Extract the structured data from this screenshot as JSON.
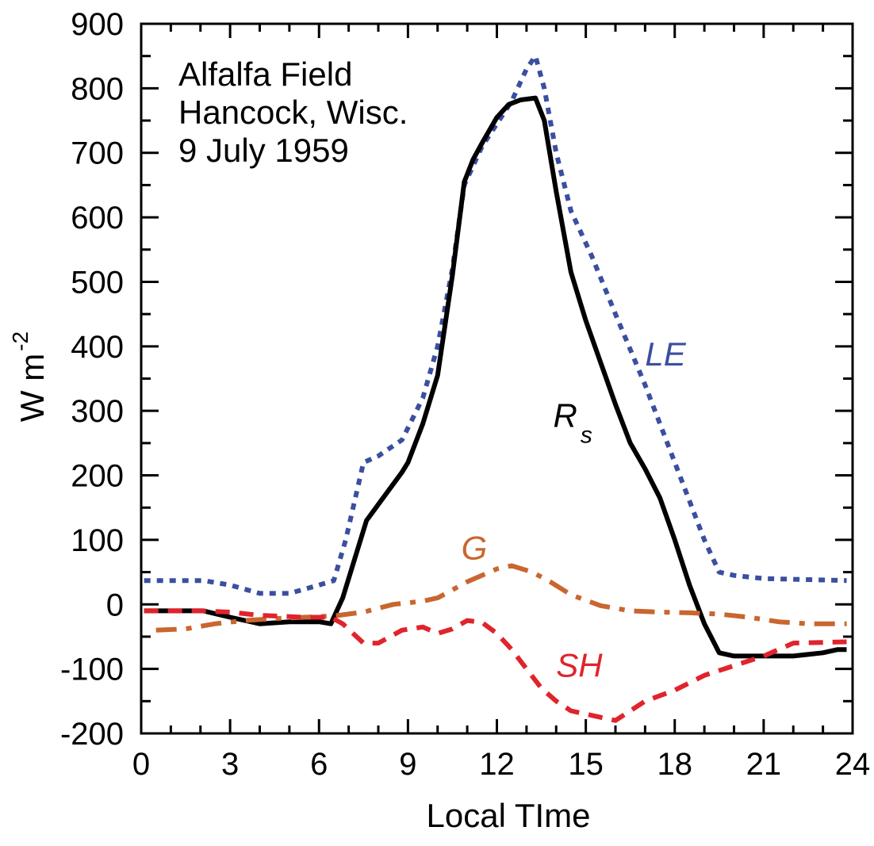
{
  "chart_data": {
    "type": "line",
    "title": "",
    "annotation": [
      "Alfalfa Field",
      "Hancock, Wisc.",
      "9 July 1959"
    ],
    "xlabel": "Local TIme",
    "ylabel": "W m",
    "ylabel_superscript": "-2",
    "xlim": [
      0,
      24
    ],
    "ylim": [
      -200,
      900
    ],
    "xticks": [
      0,
      3,
      6,
      9,
      12,
      15,
      18,
      21,
      24
    ],
    "yticks": [
      -200,
      -100,
      0,
      100,
      200,
      300,
      400,
      500,
      600,
      700,
      800,
      900
    ],
    "xtick_labels": [
      "0",
      "3",
      "6",
      "9",
      "12",
      "15",
      "18",
      "21",
      "24"
    ],
    "ytick_labels": [
      "-200",
      "-100",
      "0",
      "100",
      "200",
      "300",
      "400",
      "500",
      "600",
      "700",
      "800",
      "900"
    ],
    "grid": false,
    "series": [
      {
        "name": "LE",
        "color": "#3b4fa0",
        "style": "dotted",
        "label_pos": [
          17.0,
          370
        ],
        "points": [
          [
            0.1,
            37
          ],
          [
            2.1,
            37
          ],
          [
            3.0,
            30
          ],
          [
            4.0,
            17
          ],
          [
            5.0,
            17
          ],
          [
            6.0,
            30
          ],
          [
            6.5,
            37
          ],
          [
            6.9,
            100
          ],
          [
            7.5,
            220
          ],
          [
            8.0,
            230
          ],
          [
            8.8,
            255
          ],
          [
            9.5,
            320
          ],
          [
            10.0,
            400
          ],
          [
            10.5,
            520
          ],
          [
            10.9,
            650
          ],
          [
            11.5,
            710
          ],
          [
            12.0,
            745
          ],
          [
            12.5,
            780
          ],
          [
            13.0,
            830
          ],
          [
            13.3,
            850
          ],
          [
            13.6,
            800
          ],
          [
            14.0,
            700
          ],
          [
            14.5,
            610
          ],
          [
            15.2,
            540
          ],
          [
            16.0,
            450
          ],
          [
            17.0,
            340
          ],
          [
            18.0,
            220
          ],
          [
            19.0,
            100
          ],
          [
            19.5,
            50
          ],
          [
            20.0,
            45
          ],
          [
            21.0,
            40
          ],
          [
            23.8,
            37
          ]
        ]
      },
      {
        "name": "R",
        "name_subscript": "s",
        "color": "#000000",
        "style": "solid",
        "label_pos": [
          13.9,
          275
        ],
        "points": [
          [
            0.1,
            -10
          ],
          [
            2.1,
            -10
          ],
          [
            3.0,
            -20
          ],
          [
            4.0,
            -30
          ],
          [
            5.0,
            -27
          ],
          [
            6.0,
            -27
          ],
          [
            6.4,
            -30
          ],
          [
            6.8,
            10
          ],
          [
            7.2,
            70
          ],
          [
            7.6,
            130
          ],
          [
            8.0,
            155
          ],
          [
            8.8,
            205
          ],
          [
            9.0,
            220
          ],
          [
            9.5,
            280
          ],
          [
            10.0,
            355
          ],
          [
            10.5,
            510
          ],
          [
            10.9,
            655
          ],
          [
            11.2,
            690
          ],
          [
            11.5,
            715
          ],
          [
            12.0,
            755
          ],
          [
            12.4,
            775
          ],
          [
            12.8,
            782
          ],
          [
            13.3,
            785
          ],
          [
            13.6,
            750
          ],
          [
            14.0,
            640
          ],
          [
            14.5,
            515
          ],
          [
            15.0,
            440
          ],
          [
            15.5,
            375
          ],
          [
            16.0,
            310
          ],
          [
            16.5,
            250
          ],
          [
            17.0,
            210
          ],
          [
            17.5,
            165
          ],
          [
            18.0,
            100
          ],
          [
            18.5,
            30
          ],
          [
            19.0,
            -30
          ],
          [
            19.5,
            -75
          ],
          [
            20.0,
            -80
          ],
          [
            22.0,
            -80
          ],
          [
            23.0,
            -75
          ],
          [
            23.5,
            -70
          ],
          [
            23.8,
            -70
          ]
        ]
      },
      {
        "name": "G",
        "color": "#c9662f",
        "style": "dashdot",
        "label_pos": [
          10.8,
          70
        ],
        "points": [
          [
            0.5,
            -40
          ],
          [
            1.5,
            -38
          ],
          [
            2.5,
            -30
          ],
          [
            3.5,
            -25
          ],
          [
            4.5,
            -22
          ],
          [
            5.5,
            -20
          ],
          [
            6.5,
            -18
          ],
          [
            7.5,
            -12
          ],
          [
            8.5,
            0
          ],
          [
            9.5,
            5
          ],
          [
            10.0,
            10
          ],
          [
            11.0,
            35
          ],
          [
            12.0,
            55
          ],
          [
            12.5,
            60
          ],
          [
            13.2,
            50
          ],
          [
            13.8,
            35
          ],
          [
            14.5,
            15
          ],
          [
            15.5,
            -2
          ],
          [
            16.5,
            -10
          ],
          [
            17.5,
            -12
          ],
          [
            18.5,
            -13
          ],
          [
            19.5,
            -15
          ],
          [
            20.5,
            -20
          ],
          [
            21.5,
            -27
          ],
          [
            22.5,
            -30
          ],
          [
            23.8,
            -30
          ]
        ]
      },
      {
        "name": "SH",
        "color": "#e0242c",
        "style": "dashed",
        "label_pos": [
          14.0,
          -112
        ],
        "points": [
          [
            0.1,
            -10
          ],
          [
            2.0,
            -10
          ],
          [
            3.0,
            -12
          ],
          [
            4.0,
            -17
          ],
          [
            5.5,
            -20
          ],
          [
            6.4,
            -20
          ],
          [
            6.8,
            -30
          ],
          [
            7.5,
            -60
          ],
          [
            8.0,
            -60
          ],
          [
            8.8,
            -40
          ],
          [
            9.5,
            -35
          ],
          [
            10.0,
            -45
          ],
          [
            10.5,
            -38
          ],
          [
            11.0,
            -25
          ],
          [
            11.5,
            -28
          ],
          [
            12.0,
            -45
          ],
          [
            12.5,
            -70
          ],
          [
            13.0,
            -100
          ],
          [
            13.5,
            -130
          ],
          [
            14.0,
            -150
          ],
          [
            14.5,
            -165
          ],
          [
            15.0,
            -170
          ],
          [
            16.0,
            -180
          ],
          [
            16.5,
            -165
          ],
          [
            17.0,
            -150
          ],
          [
            18.0,
            -133
          ],
          [
            19.0,
            -110
          ],
          [
            20.0,
            -95
          ],
          [
            21.0,
            -80
          ],
          [
            22.0,
            -60
          ],
          [
            23.8,
            -58
          ]
        ]
      }
    ]
  }
}
